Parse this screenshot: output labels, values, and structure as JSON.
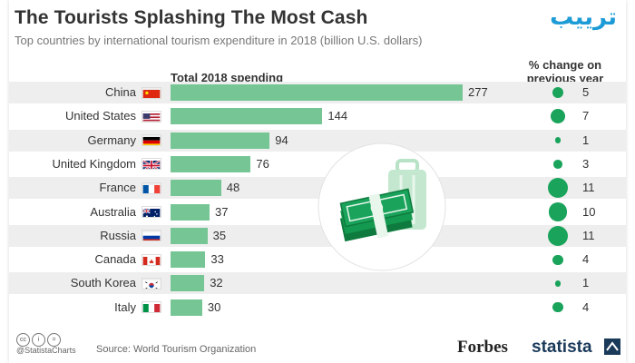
{
  "header": {
    "title": "The Tourists Splashing The Most Cash",
    "subtitle": "Top countries by international tourism expenditure in 2018 (billion U.S. dollars)",
    "logo_text": "ترييب"
  },
  "columns": {
    "total": "Total 2018 spending",
    "pct_line1": "% change on",
    "pct_line2": "previous year"
  },
  "chart_data": {
    "type": "bar",
    "orientation": "horizontal",
    "title": "The Tourists Splashing The Most Cash",
    "subtitle": "Top countries by international tourism expenditure in 2018 (billion U.S. dollars)",
    "categories": [
      "China",
      "United States",
      "Germany",
      "United Kingdom",
      "France",
      "Australia",
      "Russia",
      "Canada",
      "South Korea",
      "Italy"
    ],
    "series": [
      {
        "name": "Total 2018 spending",
        "values": [
          277,
          144,
          94,
          76,
          48,
          37,
          35,
          33,
          32,
          30
        ]
      },
      {
        "name": "% change on previous year",
        "values": [
          5,
          7,
          1,
          3,
          11,
          10,
          11,
          4,
          1,
          4
        ]
      }
    ],
    "bar_color": "#76c695",
    "dot_color": "#1aa35b"
  },
  "flags": [
    "china-flag-icon",
    "usa-flag-icon",
    "germany-flag-icon",
    "uk-flag-icon",
    "france-flag-icon",
    "australia-flag-icon",
    "russia-flag-icon",
    "canada-flag-icon",
    "south-korea-flag-icon",
    "italy-flag-icon"
  ],
  "footer": {
    "handle": "@StatistaCharts",
    "source": "Source: World Tourism Organization",
    "forbes": "Forbes",
    "statista": "statista"
  }
}
